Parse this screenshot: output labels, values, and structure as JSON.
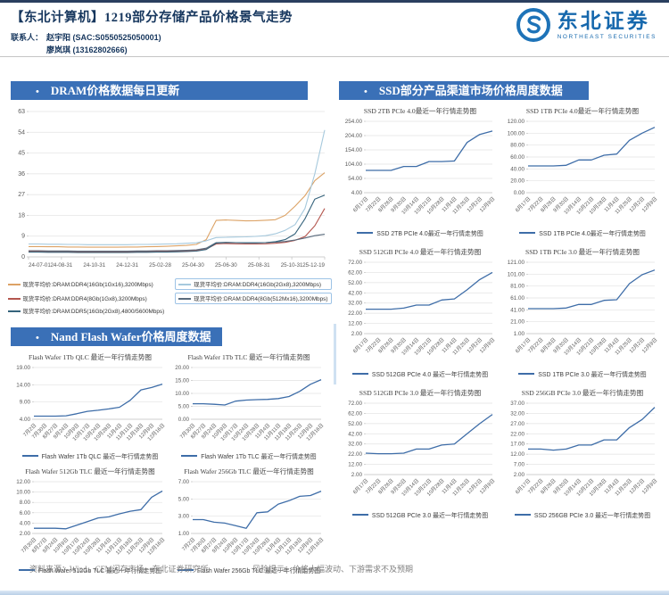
{
  "header": {
    "title": "【东北计算机】1219部分存储产品价格景气走势",
    "contact_label": "联系人：",
    "contacts": [
      "赵宇阳 (SAC:S0550525050001)",
      "廖岚琪 (13162802666)"
    ],
    "logo": {
      "cn": "东北证券",
      "en": "NORTHEAST SECURITIES"
    }
  },
  "sections": {
    "dram": {
      "title": "DRAM价格数据每日更新"
    },
    "ssd": {
      "title": "SSD部分产品渠道市场价格周度数据"
    },
    "wafer": {
      "title": "Nand Flash Wafer价格周度数据"
    }
  },
  "footer": {
    "source": "资料来源：Wind，CFM闪存市场，东北证券研究所",
    "risk": "风险提示：价格大幅波动、下游需求不及预期"
  },
  "colors": {
    "section_bar": "#3a70b7",
    "line": "#3e6da8",
    "header_text": "#17375e",
    "logo_blue": "#1668ad",
    "grid": "#e2e2e2",
    "tick_text": "#595959"
  },
  "chart_data": [
    {
      "id": "dram",
      "type": "line",
      "title": "DRAM价格数据每日更新",
      "ylim": [
        0,
        63
      ],
      "yticks": [
        63,
        54,
        45,
        36,
        27,
        18,
        9,
        0
      ],
      "decimals": 0,
      "x_tick_labels": [
        "24-07-01",
        "24-08-31",
        "24-10-31",
        "24-12-31",
        "25-02-28",
        "25-04-30",
        "25-06-30",
        "25-08-31",
        "25-10-31",
        "25-12-19"
      ],
      "series": [
        {
          "name": "现货平均价:DRAM:DDR4(16Gb(1Gx16),3200Mbps)",
          "color": "#dca265",
          "highlighted": false,
          "values": [
            4.5,
            4.5,
            4.4,
            4.4,
            4.3,
            4.3,
            4.2,
            4.2,
            4.2,
            4.2,
            4.3,
            4.3,
            4.4,
            4.5,
            4.6,
            4.8,
            5.0,
            5.4,
            7.5,
            15.8,
            16.0,
            15.8,
            15.6,
            15.7,
            15.9,
            16.1,
            18.0,
            22.0,
            26.5,
            33.0,
            36.5
          ]
        },
        {
          "name": "现货平均价:DRAM:DDR4(16Gb(2Gx8),3200Mbps)",
          "color": "#a6c9dd",
          "highlighted": true,
          "values": [
            5.6,
            5.6,
            5.5,
            5.5,
            5.4,
            5.4,
            5.3,
            5.3,
            5.3,
            5.3,
            5.3,
            5.4,
            5.4,
            5.5,
            5.6,
            5.7,
            5.9,
            6.1,
            7.0,
            8.4,
            8.5,
            8.6,
            8.7,
            8.9,
            9.2,
            10.0,
            11.5,
            14.0,
            21.0,
            36.0,
            55.0
          ]
        },
        {
          "name": "现货平均价:DRAM:DDR4(8Gb(1Gx8),3200Mbps)",
          "color": "#b4564e",
          "highlighted": false,
          "values": [
            2.4,
            2.4,
            2.3,
            2.3,
            2.3,
            2.2,
            2.2,
            2.2,
            2.2,
            2.2,
            2.2,
            2.3,
            2.3,
            2.4,
            2.4,
            2.5,
            2.6,
            2.8,
            3.4,
            5.6,
            5.8,
            5.7,
            5.6,
            5.6,
            5.7,
            5.9,
            6.3,
            7.2,
            8.8,
            13.5,
            21.0
          ]
        },
        {
          "name": "现货平均价:DRAM:DDR4(8Gb(512Mx16),3200Mbps)",
          "color": "#5a6b7d",
          "highlighted": true,
          "values": [
            2.7,
            2.7,
            2.6,
            2.6,
            2.6,
            2.5,
            2.5,
            2.5,
            2.5,
            2.5,
            2.5,
            2.6,
            2.6,
            2.7,
            2.7,
            2.8,
            2.9,
            3.1,
            3.8,
            6.2,
            6.3,
            6.2,
            6.1,
            6.1,
            6.2,
            6.4,
            6.7,
            7.3,
            8.2,
            9.2,
            9.8
          ]
        },
        {
          "name": "现货平均价:DRAM:DDR5(16Gb(2Gx8),4800/5600Mbps)",
          "color": "#35637c",
          "highlighted": false,
          "values": [
            2.1,
            2.1,
            2.0,
            2.0,
            2.0,
            1.9,
            1.9,
            1.9,
            1.9,
            1.9,
            1.9,
            2.0,
            2.0,
            2.1,
            2.1,
            2.2,
            2.3,
            2.5,
            3.2,
            6.0,
            6.2,
            6.2,
            6.1,
            6.1,
            6.2,
            6.6,
            7.5,
            10.0,
            16.5,
            25.0,
            26.8
          ]
        }
      ]
    },
    {
      "id": "ssd_2tb_pcie40",
      "type": "line",
      "title": "SSD 2TB PCIe 4.0最近一年行情走势图",
      "legend": "SSD 2TB PCIe 4.0最近一年行情走势图",
      "ylim": [
        4,
        254
      ],
      "yticks": [
        254,
        204,
        154,
        104,
        54,
        4
      ],
      "decimals": 2,
      "categories": [
        "6月17日",
        "7月22日",
        "8月26日",
        "9月30日",
        "10月14日",
        "10月21日",
        "10月28日",
        "11月4日",
        "11月25日",
        "12月2日",
        "12月9日"
      ],
      "values": [
        82,
        82,
        82,
        96,
        96,
        113,
        113,
        115,
        180,
        208,
        220
      ]
    },
    {
      "id": "ssd_1tb_pcie40",
      "type": "line",
      "title": "SSD 1TB PCIe 4.0最近一年行情走势图",
      "legend": "SSD 1TB PCIe 4.0最近一年行情走势图",
      "ylim": [
        0,
        120
      ],
      "yticks": [
        120,
        100,
        80,
        60,
        40,
        20,
        0
      ],
      "decimals": 2,
      "categories": [
        "6月17日",
        "7月22日",
        "8月26日",
        "9月30日",
        "10月14日",
        "10月21日",
        "10月28日",
        "11月4日",
        "11月25日",
        "12月2日",
        "12月9日"
      ],
      "values": [
        45,
        45,
        45,
        46,
        55,
        55,
        63,
        65,
        88,
        100,
        110
      ]
    },
    {
      "id": "ssd_512gb_pcie40",
      "type": "line",
      "title": "SSD 512GB PCIe 4.0 最近一年行情走势图",
      "legend": "SSD 512GB PCIe 4.0 最近一年行情走势图",
      "ylim": [
        2,
        72
      ],
      "yticks": [
        72,
        62,
        52,
        42,
        32,
        22,
        12,
        2
      ],
      "decimals": 2,
      "categories": [
        "6月17日",
        "7月22日",
        "8月26日",
        "9月30日",
        "10月14日",
        "10月21日",
        "10月28日",
        "11月4日",
        "11月25日",
        "12月2日",
        "12月9日"
      ],
      "values": [
        26,
        26,
        26,
        27,
        30,
        30,
        35,
        36,
        45,
        55,
        62
      ]
    },
    {
      "id": "ssd_1tb_pcie30",
      "type": "line",
      "title": "SSD 1TB PCIe 3.0 最近一年行情走势图",
      "legend": "SSD 1TB PCIe 3.0 最近一年行情走势图",
      "ylim": [
        1,
        121
      ],
      "yticks": [
        121,
        101,
        81,
        61,
        41,
        21,
        1
      ],
      "decimals": 2,
      "categories": [
        "6月17日",
        "7月22日",
        "8月26日",
        "9月30日",
        "10月14日",
        "10月21日",
        "10月28日",
        "11月4日",
        "11月25日",
        "12月2日",
        "12月9日"
      ],
      "values": [
        43,
        43,
        43,
        44,
        50,
        50,
        57,
        58,
        85,
        100,
        108
      ]
    },
    {
      "id": "ssd_512gb_pcie30",
      "type": "line",
      "title": "SSD 512GB PCIe 3.0 最近一年行情走势图",
      "legend": "SSD 512GB PCIe 3.0 最近一年行情走势图",
      "ylim": [
        2,
        72
      ],
      "yticks": [
        72,
        62,
        52,
        42,
        32,
        22,
        12,
        2
      ],
      "decimals": 2,
      "categories": [
        "6月17日",
        "7月22日",
        "8月26日",
        "9月30日",
        "10月14日",
        "10月21日",
        "10月28日",
        "11月4日",
        "11月25日",
        "12月2日",
        "12月9日"
      ],
      "values": [
        23,
        22.5,
        22.5,
        23,
        27,
        27,
        31,
        32,
        42,
        52,
        61
      ]
    },
    {
      "id": "ssd_256gb_pcie30",
      "type": "line",
      "title": "SSD 256GB PCIe 3.0 最近一年行情走势图",
      "legend": "SSD 256GB PCIe 3.0 最近一年行情走势图",
      "ylim": [
        2,
        37
      ],
      "yticks": [
        37,
        32,
        27,
        22,
        17,
        12,
        7,
        2
      ],
      "decimals": 2,
      "categories": [
        "6月17日",
        "7月22日",
        "8月26日",
        "9月30日",
        "10月14日",
        "10月21日",
        "10月28日",
        "11月4日",
        "11月25日",
        "12月2日",
        "12月9日"
      ],
      "values": [
        14.5,
        14.5,
        14,
        14.5,
        16.5,
        16.5,
        19,
        19,
        25,
        29,
        35
      ]
    },
    {
      "id": "wafer_1tb_qlc",
      "type": "line",
      "title": "Flash Wafer 1Tb QLC 最近一年行情走势图",
      "legend": "Flash Wafer 1Tb QLC 最近一年行情走势图",
      "ylim": [
        4,
        19
      ],
      "yticks": [
        19,
        14,
        9,
        4
      ],
      "decimals": 2,
      "categories": [
        "7月2日",
        "7月30日",
        "8月27日",
        "9月24日",
        "10月9日",
        "10月17日",
        "10月24日",
        "10月28日",
        "11月4日",
        "11月11日",
        "11月18日",
        "12月9日",
        "12月16日"
      ],
      "values": [
        4.9,
        4.9,
        4.9,
        5.0,
        5.6,
        6.3,
        6.6,
        7.0,
        7.5,
        9.5,
        12.5,
        13.2,
        14.2
      ]
    },
    {
      "id": "wafer_1tb_tlc",
      "type": "line",
      "title": "Flash Wafer 1Tb TLC 最近一年行情走势图",
      "legend": "Flash Wafer 1Tb TLC 最近一年行情走势图",
      "ylim": [
        0,
        20
      ],
      "yticks": [
        20,
        15,
        10,
        5,
        0
      ],
      "decimals": 2,
      "categories": [
        "7月30日",
        "8月27日",
        "9月24日",
        "10月9日",
        "10月17日",
        "10月24日",
        "10月28日",
        "11月4日",
        "11月11日",
        "11月18日",
        "11月25日",
        "12月9日",
        "12月16日"
      ],
      "values": [
        6.0,
        6.0,
        5.8,
        5.5,
        7.0,
        7.4,
        7.6,
        7.7,
        8.0,
        8.8,
        10.8,
        13.5,
        15.3
      ]
    },
    {
      "id": "wafer_512gb_tlc",
      "type": "line",
      "title": "Flash Wafer 512Gb TLC 最近一年行情走势图",
      "legend": "Flash Wafer 512Gb TLC 最近一年行情走势图",
      "ylim": [
        2,
        12
      ],
      "yticks": [
        12,
        10,
        8,
        6,
        4,
        2
      ],
      "decimals": 2,
      "categories": [
        "7月30日",
        "8月27日",
        "9月24日",
        "10月9日",
        "10月17日",
        "10月24日",
        "10月28日",
        "11月4日",
        "11月11日",
        "11月18日",
        "11月25日",
        "12月9日",
        "12月16日"
      ],
      "values": [
        3.0,
        3.0,
        3.0,
        2.9,
        3.6,
        4.3,
        5.0,
        5.2,
        5.8,
        6.3,
        6.6,
        9.0,
        10.2
      ]
    },
    {
      "id": "wafer_256gb_tlc",
      "type": "line",
      "title": "Flash Wafer 256Gb TLC 最近一年行情走势图",
      "legend": "Flash Wafer 256Gb TLC 最近一年行情走势图",
      "ylim": [
        1,
        7
      ],
      "yticks": [
        7,
        5,
        3,
        1
      ],
      "decimals": 2,
      "categories": [
        "7月2日",
        "7月30日",
        "8月27日",
        "9月24日",
        "10月9日",
        "10月17日",
        "10月24日",
        "10月28日",
        "11月4日",
        "11月11日",
        "11月18日",
        "12月9日",
        "12月16日"
      ],
      "values": [
        2.6,
        2.6,
        2.3,
        2.2,
        1.9,
        1.6,
        3.4,
        3.5,
        4.4,
        4.8,
        5.3,
        5.4,
        5.9
      ]
    }
  ]
}
